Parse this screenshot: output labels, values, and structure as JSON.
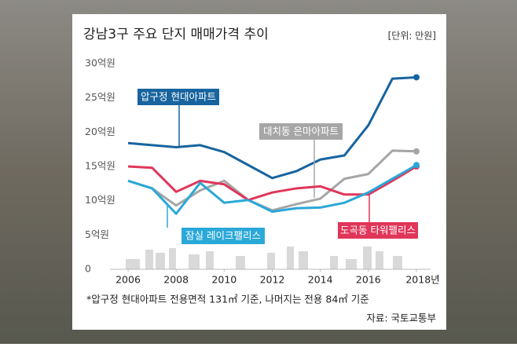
{
  "chart_data": {
    "type": "line",
    "title": "강남3구 주요 단지 매매가격 추이",
    "unit_note": "[단위: 만원]",
    "footnote": "*압구정 현대아파트 전용면적 131㎡ 기준, 나머지는 전용 84㎡ 기준",
    "source": "자료: 국토교통부",
    "x": [
      2006,
      2007,
      2008,
      2009,
      2010,
      2011,
      2012,
      2013,
      2014,
      2015,
      2016,
      2017,
      2018
    ],
    "xlim": [
      2006,
      2018
    ],
    "xticks": [
      2006,
      2008,
      2010,
      2012,
      2014,
      2016,
      {
        "value": 2018,
        "label": "2018년"
      }
    ],
    "ylim": [
      0,
      30
    ],
    "yticks": [
      0,
      {
        "value": 5,
        "label": "5억원"
      },
      {
        "value": 10,
        "label": "10억원"
      },
      {
        "value": 15,
        "label": "15억원"
      },
      {
        "value": 20,
        "label": "20억원"
      },
      {
        "value": 25,
        "label": "25억원"
      },
      {
        "value": 30,
        "label": "30억원"
      }
    ],
    "grid": false,
    "series": [
      {
        "name": "압구정 현대아파트",
        "color": "#17649e",
        "values": [
          18.4,
          18.1,
          17.8,
          18.1,
          17.1,
          15.2,
          13.3,
          14.3,
          16.0,
          16.6,
          21.0,
          27.8,
          28.0
        ]
      },
      {
        "name": "대치동 은마아파트",
        "color": "#a6a6a6",
        "values": [
          12.9,
          11.8,
          9.3,
          11.5,
          12.9,
          10.1,
          8.6,
          9.5,
          10.3,
          13.2,
          13.9,
          17.3,
          17.2
        ]
      },
      {
        "name": "도곡동 타워팰리스",
        "color": "#e0365a",
        "values": [
          15.0,
          14.8,
          11.3,
          12.9,
          12.4,
          10.1,
          11.2,
          11.8,
          12.1,
          10.9,
          10.9,
          12.9,
          15.0
        ]
      },
      {
        "name": "잠실 레이크팰리스",
        "color": "#2aa8d8",
        "values": [
          12.9,
          11.8,
          8.1,
          12.6,
          9.7,
          10.1,
          8.4,
          8.9,
          9.0,
          9.7,
          11.2,
          13.2,
          15.2
        ]
      }
    ]
  }
}
